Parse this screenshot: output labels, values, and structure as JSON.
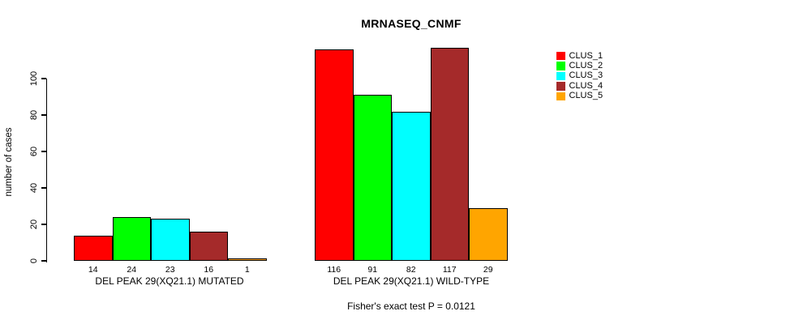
{
  "chart_data": {
    "type": "bar",
    "title": "MRNASEQ_CNMF",
    "ylabel": "number of cases",
    "xlabel": "",
    "ylim": [
      0,
      100
    ],
    "yticks": [
      0,
      20,
      40,
      60,
      80,
      100
    ],
    "grid": false,
    "legend_position": "right",
    "bar_border_color": "#000000",
    "groups": [
      {
        "label": "DEL PEAK 29(XQ21.1) MUTATED",
        "key": "mutated",
        "values": [
          14,
          24,
          23,
          16,
          1
        ]
      },
      {
        "label": "DEL PEAK 29(XQ21.1) WILD-TYPE",
        "key": "wild-type",
        "values": [
          116,
          91,
          82,
          117,
          29
        ]
      }
    ],
    "series": [
      {
        "name": "CLUS_1",
        "color": "#FF0000"
      },
      {
        "name": "CLUS_2",
        "color": "#00FF00"
      },
      {
        "name": "CLUS_3",
        "color": "#00FFFF"
      },
      {
        "name": "CLUS_4",
        "color": "#A52A2A"
      },
      {
        "name": "CLUS_5",
        "color": "#FFA500"
      }
    ],
    "annotation": "Fisher's exact test P = 0.0121"
  }
}
